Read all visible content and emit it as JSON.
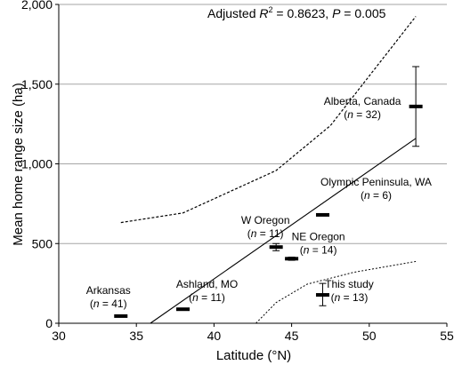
{
  "chart_data": {
    "type": "scatter",
    "title": "",
    "xlabel": "Latitude (°N)",
    "ylabel": "Mean home range size (ha)",
    "xlim": [
      30,
      55
    ],
    "ylim": [
      0,
      2000
    ],
    "x_ticks": [
      30,
      35,
      40,
      45,
      50,
      55
    ],
    "y_ticks": [
      0,
      500,
      1000,
      1500,
      2000
    ],
    "x_tick_labels": [
      "30",
      "35",
      "40",
      "45",
      "50",
      "55"
    ],
    "y_tick_labels": [
      "0",
      "500",
      "1,000",
      "1,500",
      "2,000"
    ],
    "grid": "horizontal",
    "annotation": {
      "prefix": "Adjusted ",
      "r_symbol": "R",
      "r_exponent": "2",
      "r_value": " = 0.8623, ",
      "p_symbol": "P",
      "p_value": " = 0.005"
    },
    "points": [
      {
        "name": "Arkansas",
        "n_label": "(n = 41)",
        "x": 34.0,
        "y": 45,
        "err_low": null,
        "err_high": null
      },
      {
        "name": "Ashland, MO",
        "n_label": "(n = 11)",
        "x": 38.0,
        "y": 88,
        "err_low": null,
        "err_high": null
      },
      {
        "name": "W Oregon",
        "n_label": "(n = 11)",
        "x": 44.0,
        "y": 478,
        "err_low": 455,
        "err_high": 500
      },
      {
        "name": "NE Oregon",
        "n_label": "(n = 14)",
        "x": 45.0,
        "y": 405,
        "err_low": 395,
        "err_high": 415
      },
      {
        "name": "Olympic Peninsula, WA",
        "n_label": "(n = 6)",
        "x": 47.0,
        "y": 680,
        "err_low": null,
        "err_high": null
      },
      {
        "name": "This study",
        "n_label": "(n = 13)",
        "x": 47.0,
        "y": 178,
        "err_low": 110,
        "err_high": 250
      },
      {
        "name": "Alberta, Canada",
        "n_label": "(n = 32)",
        "x": 53.0,
        "y": 1360,
        "err_low": 1110,
        "err_high": 1610
      }
    ],
    "regression_line": {
      "x": [
        35.9,
        53.0
      ],
      "y": [
        0,
        1160
      ]
    },
    "upper_interval": {
      "x": [
        34.0,
        38.0,
        44.0,
        47.5,
        53.0
      ],
      "y": [
        632,
        692,
        958,
        1240,
        1925
      ]
    },
    "lower_interval": {
      "x": [
        42.7,
        44.0,
        46.0,
        49.0,
        53.0
      ],
      "y": [
        0,
        130,
        245,
        320,
        388
      ]
    }
  }
}
